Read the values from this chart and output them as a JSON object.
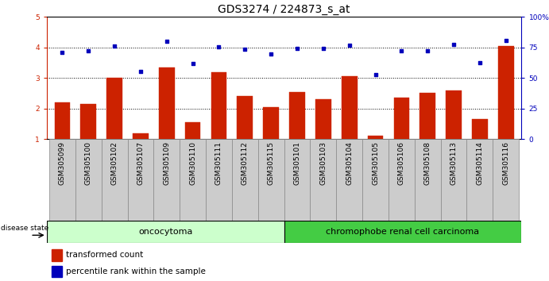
{
  "title": "GDS3274 / 224873_s_at",
  "samples": [
    "GSM305099",
    "GSM305100",
    "GSM305102",
    "GSM305107",
    "GSM305109",
    "GSM305110",
    "GSM305111",
    "GSM305112",
    "GSM305115",
    "GSM305101",
    "GSM305103",
    "GSM305104",
    "GSM305105",
    "GSM305106",
    "GSM305108",
    "GSM305113",
    "GSM305114",
    "GSM305116"
  ],
  "red_values": [
    2.2,
    2.15,
    3.0,
    1.2,
    3.35,
    1.55,
    3.2,
    2.4,
    2.05,
    2.55,
    2.3,
    3.05,
    1.1,
    2.35,
    2.5,
    2.6,
    1.65,
    4.05
  ],
  "blue_values": [
    3.85,
    3.88,
    4.05,
    3.22,
    4.2,
    3.48,
    4.02,
    3.95,
    3.78,
    3.98,
    3.98,
    4.08,
    3.12,
    3.88,
    3.88,
    4.1,
    3.5,
    4.22
  ],
  "oncocytoma_count": 9,
  "chromophobe_count": 9,
  "group1_label": "oncocytoma",
  "group2_label": "chromophobe renal cell carcinoma",
  "disease_state_label": "disease state",
  "ylim_left": [
    1,
    5
  ],
  "ylim_right": [
    0,
    100
  ],
  "yticks_left": [
    1,
    2,
    3,
    4,
    5
  ],
  "yticks_right": [
    0,
    25,
    50,
    75,
    100
  ],
  "ytick_labels_right": [
    "0",
    "25",
    "50",
    "75",
    "100%"
  ],
  "red_color": "#cc2200",
  "blue_color": "#0000bb",
  "onco_bg": "#ccffcc",
  "chrom_bg": "#44cc44",
  "legend_red_label": "transformed count",
  "legend_blue_label": "percentile rank within the sample",
  "title_fontsize": 10,
  "tick_fontsize": 6.5,
  "bar_width": 0.6
}
